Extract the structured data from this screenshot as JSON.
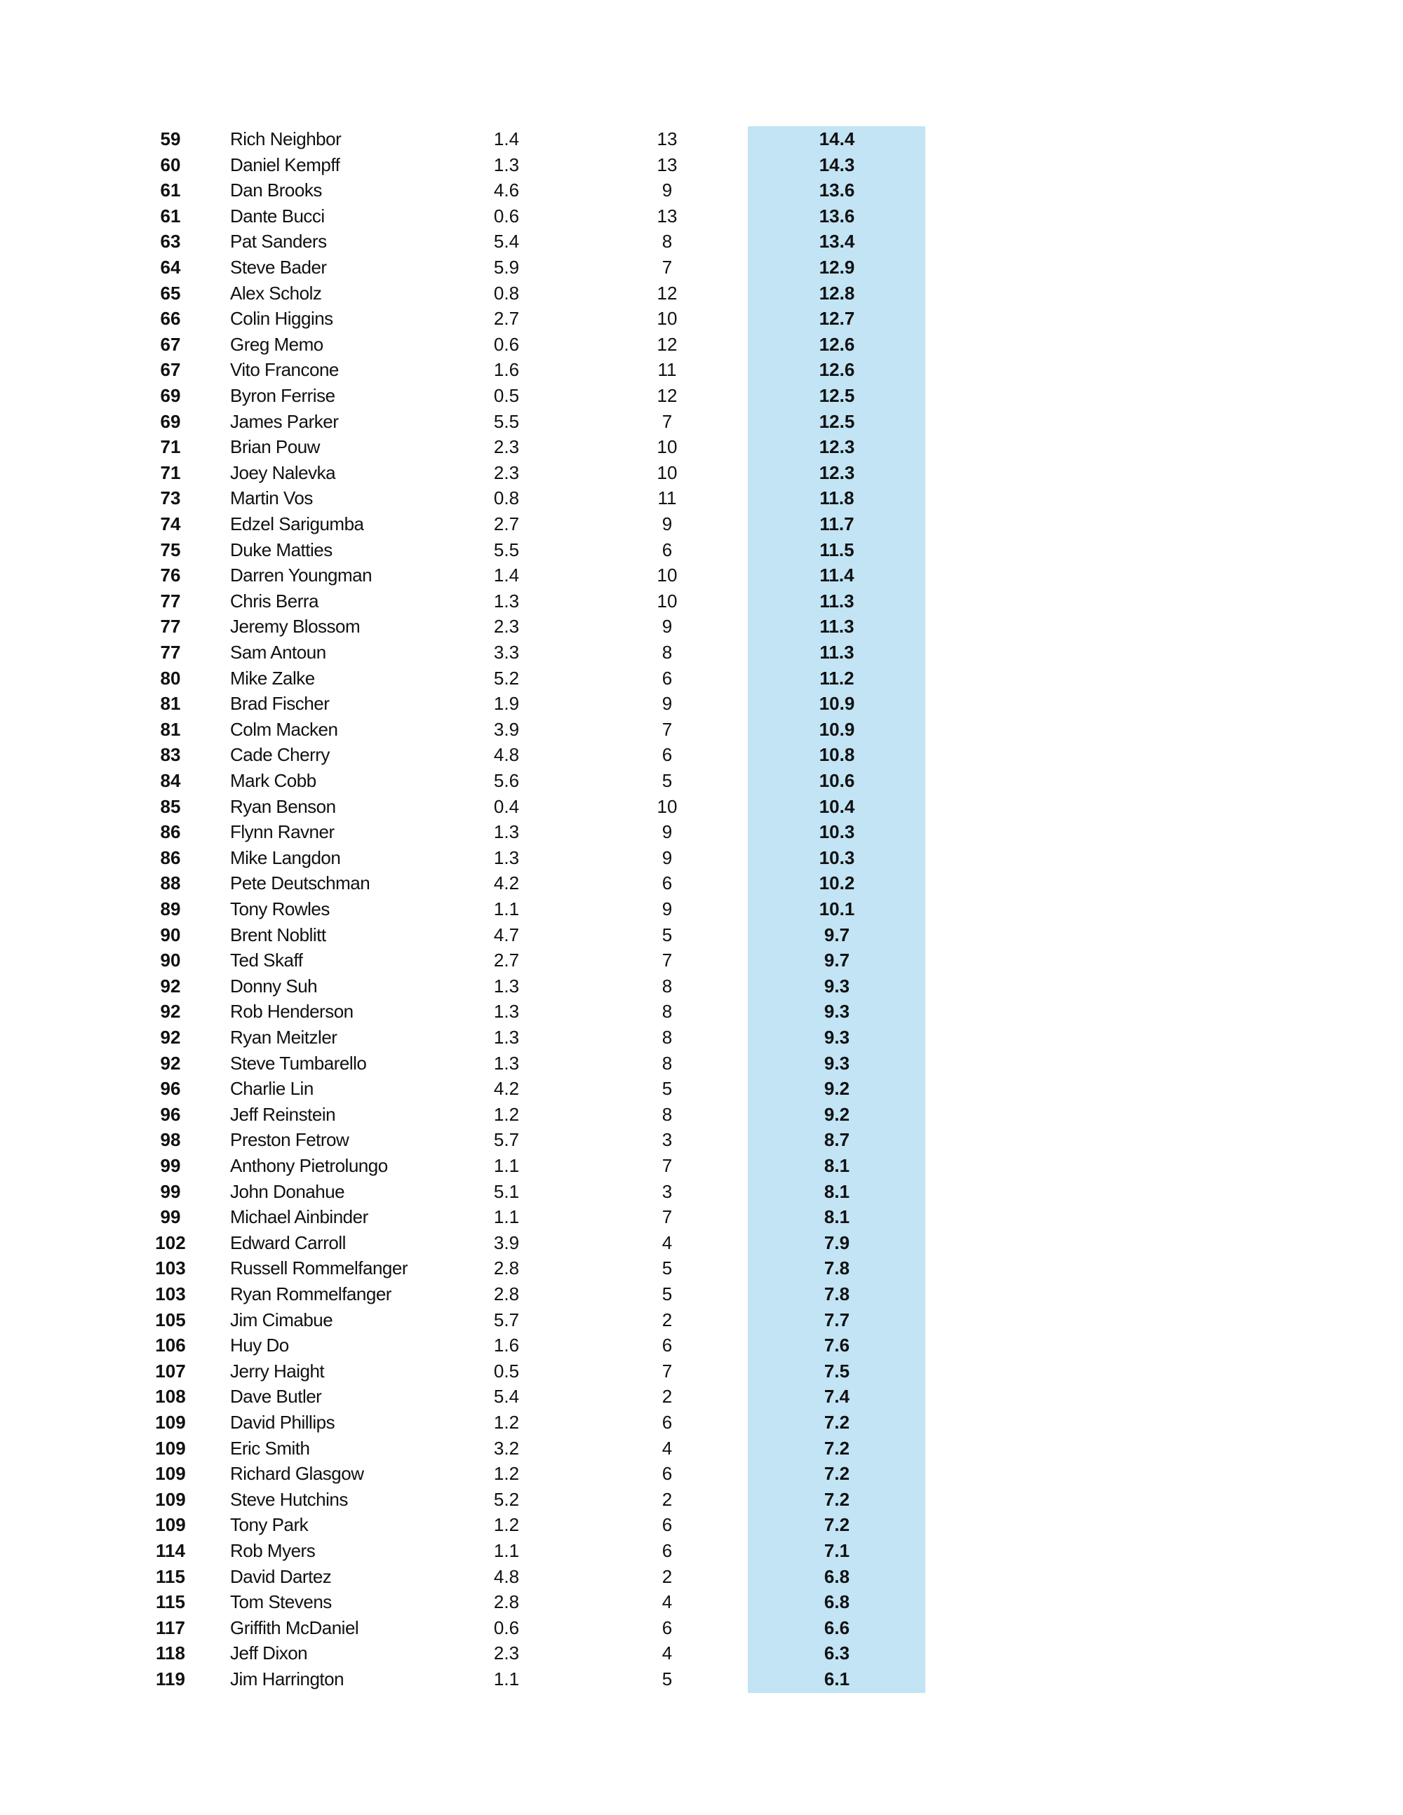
{
  "highlight_color": "#c2e4f4",
  "rows": [
    [
      "59",
      "Rich Neighbor",
      "1.4",
      "13",
      "14.4"
    ],
    [
      "60",
      "Daniel Kempff",
      "1.3",
      "13",
      "14.3"
    ],
    [
      "61",
      "Dan Brooks",
      "4.6",
      "9",
      "13.6"
    ],
    [
      "61",
      "Dante Bucci",
      "0.6",
      "13",
      "13.6"
    ],
    [
      "63",
      "Pat Sanders",
      "5.4",
      "8",
      "13.4"
    ],
    [
      "64",
      "Steve Bader",
      "5.9",
      "7",
      "12.9"
    ],
    [
      "65",
      "Alex Scholz",
      "0.8",
      "12",
      "12.8"
    ],
    [
      "66",
      "Colin Higgins",
      "2.7",
      "10",
      "12.7"
    ],
    [
      "67",
      "Greg Memo",
      "0.6",
      "12",
      "12.6"
    ],
    [
      "67",
      "Vito Francone",
      "1.6",
      "11",
      "12.6"
    ],
    [
      "69",
      "Byron Ferrise",
      "0.5",
      "12",
      "12.5"
    ],
    [
      "69",
      "James Parker",
      "5.5",
      "7",
      "12.5"
    ],
    [
      "71",
      "Brian Pouw",
      "2.3",
      "10",
      "12.3"
    ],
    [
      "71",
      "Joey Nalevka",
      "2.3",
      "10",
      "12.3"
    ],
    [
      "73",
      "Martin Vos",
      "0.8",
      "11",
      "11.8"
    ],
    [
      "74",
      "Edzel Sarigumba",
      "2.7",
      "9",
      "11.7"
    ],
    [
      "75",
      "Duke Matties",
      "5.5",
      "6",
      "11.5"
    ],
    [
      "76",
      "Darren Youngman",
      "1.4",
      "10",
      "11.4"
    ],
    [
      "77",
      "Chris Berra",
      "1.3",
      "10",
      "11.3"
    ],
    [
      "77",
      "Jeremy Blossom",
      "2.3",
      "9",
      "11.3"
    ],
    [
      "77",
      "Sam Antoun",
      "3.3",
      "8",
      "11.3"
    ],
    [
      "80",
      "Mike Zalke",
      "5.2",
      "6",
      "11.2"
    ],
    [
      "81",
      "Brad Fischer",
      "1.9",
      "9",
      "10.9"
    ],
    [
      "81",
      "Colm Macken",
      "3.9",
      "7",
      "10.9"
    ],
    [
      "83",
      "Cade Cherry",
      "4.8",
      "6",
      "10.8"
    ],
    [
      "84",
      "Mark Cobb",
      "5.6",
      "5",
      "10.6"
    ],
    [
      "85",
      "Ryan Benson",
      "0.4",
      "10",
      "10.4"
    ],
    [
      "86",
      "Flynn Ravner",
      "1.3",
      "9",
      "10.3"
    ],
    [
      "86",
      "Mike Langdon",
      "1.3",
      "9",
      "10.3"
    ],
    [
      "88",
      "Pete Deutschman",
      "4.2",
      "6",
      "10.2"
    ],
    [
      "89",
      "Tony Rowles",
      "1.1",
      "9",
      "10.1"
    ],
    [
      "90",
      "Brent Noblitt",
      "4.7",
      "5",
      "9.7"
    ],
    [
      "90",
      "Ted Skaff",
      "2.7",
      "7",
      "9.7"
    ],
    [
      "92",
      "Donny Suh",
      "1.3",
      "8",
      "9.3"
    ],
    [
      "92",
      "Rob Henderson",
      "1.3",
      "8",
      "9.3"
    ],
    [
      "92",
      "Ryan Meitzler",
      "1.3",
      "8",
      "9.3"
    ],
    [
      "92",
      "Steve Tumbarello",
      "1.3",
      "8",
      "9.3"
    ],
    [
      "96",
      "Charlie Lin",
      "4.2",
      "5",
      "9.2"
    ],
    [
      "96",
      "Jeff Reinstein",
      "1.2",
      "8",
      "9.2"
    ],
    [
      "98",
      "Preston Fetrow",
      "5.7",
      "3",
      "8.7"
    ],
    [
      "99",
      "Anthony Pietrolungo",
      "1.1",
      "7",
      "8.1"
    ],
    [
      "99",
      "John Donahue",
      "5.1",
      "3",
      "8.1"
    ],
    [
      "99",
      "Michael Ainbinder",
      "1.1",
      "7",
      "8.1"
    ],
    [
      "102",
      "Edward Carroll",
      "3.9",
      "4",
      "7.9"
    ],
    [
      "103",
      "Russell Rommelfanger",
      "2.8",
      "5",
      "7.8"
    ],
    [
      "103",
      "Ryan Rommelfanger",
      "2.8",
      "5",
      "7.8"
    ],
    [
      "105",
      "Jim Cimabue",
      "5.7",
      "2",
      "7.7"
    ],
    [
      "106",
      "Huy Do",
      "1.6",
      "6",
      "7.6"
    ],
    [
      "107",
      "Jerry Haight",
      "0.5",
      "7",
      "7.5"
    ],
    [
      "108",
      "Dave Butler",
      "5.4",
      "2",
      "7.4"
    ],
    [
      "109",
      "David Phillips",
      "1.2",
      "6",
      "7.2"
    ],
    [
      "109",
      "Eric Smith",
      "3.2",
      "4",
      "7.2"
    ],
    [
      "109",
      "Richard Glasgow",
      "1.2",
      "6",
      "7.2"
    ],
    [
      "109",
      "Steve Hutchins",
      "5.2",
      "2",
      "7.2"
    ],
    [
      "109",
      "Tony Park",
      "1.2",
      "6",
      "7.2"
    ],
    [
      "114",
      "Rob Myers",
      "1.1",
      "6",
      "7.1"
    ],
    [
      "115",
      "David Dartez",
      "4.8",
      "2",
      "6.8"
    ],
    [
      "115",
      "Tom Stevens",
      "2.8",
      "4",
      "6.8"
    ],
    [
      "117",
      "Griffith McDaniel",
      "0.6",
      "6",
      "6.6"
    ],
    [
      "118",
      "Jeff Dixon",
      "2.3",
      "4",
      "6.3"
    ],
    [
      "119",
      "Jim Harrington",
      "1.1",
      "5",
      "6.1"
    ]
  ]
}
